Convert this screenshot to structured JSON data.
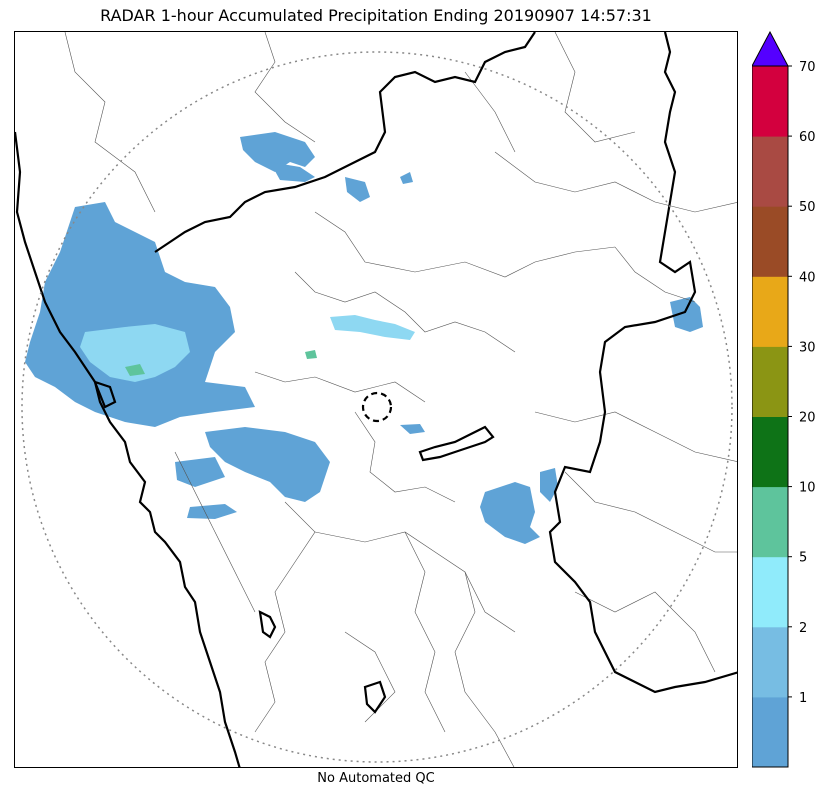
{
  "title": "RADAR 1-hour Accumulated Precipitation Ending 20190907 14:57:31",
  "footer": "No Automated QC",
  "map": {
    "range_ring": "dotted",
    "radar_site_marker": "dashed-circle",
    "colors": {
      "rain_light": "#5fa3d6",
      "rain_medium": "#8ed8f2",
      "rain_heavy": "#5ec49c",
      "state_border": "#000000",
      "district_border": "#555555",
      "range_ring": "#888888"
    }
  },
  "colorbar": {
    "levels": [
      "1",
      "2",
      "5",
      "10",
      "20",
      "30",
      "40",
      "50",
      "60",
      "70"
    ],
    "colors": [
      "#5fa3d6",
      "#77bde3",
      "#90ebfb",
      "#5ec49c",
      "#0e7317",
      "#8b9514",
      "#e8a818",
      "#9a4b26",
      "#a94a43",
      "#d3003e"
    ],
    "extend_color": "#5400ff"
  }
}
